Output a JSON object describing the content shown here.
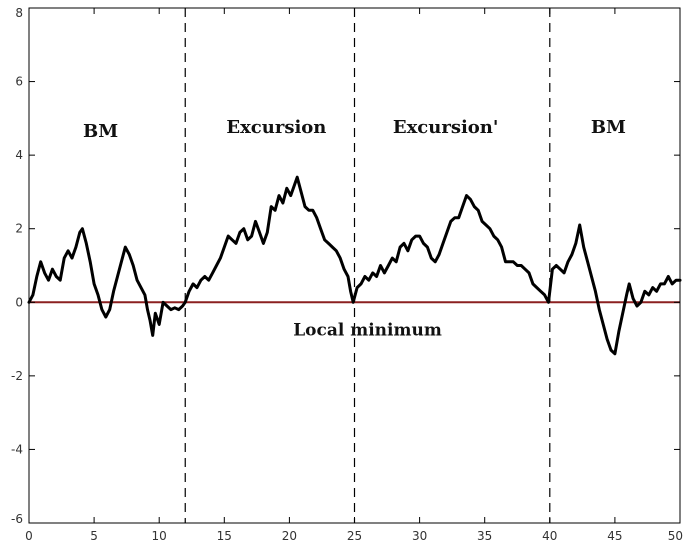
{
  "chart_data": {
    "type": "line",
    "title": "",
    "xlabel": "",
    "ylabel": "",
    "xlim": [
      0,
      50
    ],
    "ylim": [
      -6,
      8
    ],
    "xticks": [
      0,
      5,
      10,
      15,
      20,
      25,
      30,
      35,
      40,
      45,
      50
    ],
    "yticks": [
      -6,
      -4,
      -2,
      0,
      2,
      4,
      6,
      8
    ],
    "grid": false,
    "legend": "none",
    "series": [
      {
        "color": "#000000",
        "points": [
          [
            0.0,
            0.0
          ],
          [
            0.3,
            0.2
          ],
          [
            0.6,
            0.7
          ],
          [
            0.9,
            1.1
          ],
          [
            1.2,
            0.8
          ],
          [
            1.5,
            0.6
          ],
          [
            1.8,
            0.9
          ],
          [
            2.1,
            0.7
          ],
          [
            2.4,
            0.6
          ],
          [
            2.7,
            1.2
          ],
          [
            3.0,
            1.4
          ],
          [
            3.3,
            1.2
          ],
          [
            3.6,
            1.5
          ],
          [
            3.9,
            1.9
          ],
          [
            4.1,
            2.0
          ],
          [
            4.4,
            1.6
          ],
          [
            4.7,
            1.1
          ],
          [
            5.0,
            0.5
          ],
          [
            5.3,
            0.2
          ],
          [
            5.6,
            -0.2
          ],
          [
            5.9,
            -0.4
          ],
          [
            6.2,
            -0.2
          ],
          [
            6.5,
            0.3
          ],
          [
            6.8,
            0.7
          ],
          [
            7.1,
            1.1
          ],
          [
            7.4,
            1.5
          ],
          [
            7.7,
            1.3
          ],
          [
            8.0,
            1.0
          ],
          [
            8.3,
            0.6
          ],
          [
            8.6,
            0.4
          ],
          [
            8.9,
            0.2
          ],
          [
            9.1,
            -0.2
          ],
          [
            9.3,
            -0.5
          ],
          [
            9.5,
            -0.9
          ],
          [
            9.7,
            -0.3
          ],
          [
            10.0,
            -0.6
          ],
          [
            10.3,
            0.0
          ],
          [
            10.6,
            -0.1
          ],
          [
            10.9,
            -0.2
          ],
          [
            11.2,
            -0.15
          ],
          [
            11.5,
            -0.2
          ],
          [
            11.8,
            -0.1
          ],
          [
            12.0,
            0.0
          ],
          [
            12.3,
            0.3
          ],
          [
            12.6,
            0.5
          ],
          [
            12.9,
            0.4
          ],
          [
            13.2,
            0.6
          ],
          [
            13.5,
            0.7
          ],
          [
            13.8,
            0.6
          ],
          [
            14.1,
            0.8
          ],
          [
            14.4,
            1.0
          ],
          [
            14.7,
            1.2
          ],
          [
            15.0,
            1.5
          ],
          [
            15.3,
            1.8
          ],
          [
            15.6,
            1.7
          ],
          [
            15.9,
            1.6
          ],
          [
            16.2,
            1.9
          ],
          [
            16.5,
            2.0
          ],
          [
            16.8,
            1.7
          ],
          [
            17.1,
            1.8
          ],
          [
            17.4,
            2.2
          ],
          [
            17.7,
            1.9
          ],
          [
            18.0,
            1.6
          ],
          [
            18.3,
            1.9
          ],
          [
            18.6,
            2.6
          ],
          [
            18.9,
            2.5
          ],
          [
            19.2,
            2.9
          ],
          [
            19.5,
            2.7
          ],
          [
            19.8,
            3.1
          ],
          [
            20.1,
            2.9
          ],
          [
            20.4,
            3.2
          ],
          [
            20.6,
            3.4
          ],
          [
            20.9,
            3.0
          ],
          [
            21.2,
            2.6
          ],
          [
            21.5,
            2.5
          ],
          [
            21.8,
            2.5
          ],
          [
            22.1,
            2.3
          ],
          [
            22.4,
            2.0
          ],
          [
            22.7,
            1.7
          ],
          [
            23.0,
            1.6
          ],
          [
            23.3,
            1.5
          ],
          [
            23.6,
            1.4
          ],
          [
            23.9,
            1.2
          ],
          [
            24.2,
            0.9
          ],
          [
            24.5,
            0.7
          ],
          [
            24.7,
            0.3
          ],
          [
            24.9,
            0.0
          ],
          [
            25.2,
            0.4
          ],
          [
            25.5,
            0.5
          ],
          [
            25.8,
            0.7
          ],
          [
            26.1,
            0.6
          ],
          [
            26.4,
            0.8
          ],
          [
            26.7,
            0.7
          ],
          [
            27.0,
            1.0
          ],
          [
            27.3,
            0.8
          ],
          [
            27.6,
            1.0
          ],
          [
            27.9,
            1.2
          ],
          [
            28.2,
            1.1
          ],
          [
            28.5,
            1.5
          ],
          [
            28.8,
            1.6
          ],
          [
            29.1,
            1.4
          ],
          [
            29.4,
            1.7
          ],
          [
            29.7,
            1.8
          ],
          [
            30.0,
            1.8
          ],
          [
            30.3,
            1.6
          ],
          [
            30.6,
            1.5
          ],
          [
            30.9,
            1.2
          ],
          [
            31.2,
            1.1
          ],
          [
            31.5,
            1.3
          ],
          [
            31.8,
            1.6
          ],
          [
            32.1,
            1.9
          ],
          [
            32.4,
            2.2
          ],
          [
            32.7,
            2.3
          ],
          [
            33.0,
            2.3
          ],
          [
            33.3,
            2.6
          ],
          [
            33.6,
            2.9
          ],
          [
            33.9,
            2.8
          ],
          [
            34.2,
            2.6
          ],
          [
            34.5,
            2.5
          ],
          [
            34.8,
            2.2
          ],
          [
            35.1,
            2.1
          ],
          [
            35.4,
            2.0
          ],
          [
            35.7,
            1.8
          ],
          [
            36.0,
            1.7
          ],
          [
            36.3,
            1.5
          ],
          [
            36.6,
            1.1
          ],
          [
            36.9,
            1.1
          ],
          [
            37.2,
            1.1
          ],
          [
            37.5,
            1.0
          ],
          [
            37.8,
            1.0
          ],
          [
            38.1,
            0.9
          ],
          [
            38.4,
            0.8
          ],
          [
            38.7,
            0.5
          ],
          [
            39.0,
            0.4
          ],
          [
            39.3,
            0.3
          ],
          [
            39.6,
            0.2
          ],
          [
            39.9,
            0.0
          ],
          [
            40.2,
            0.9
          ],
          [
            40.5,
            1.0
          ],
          [
            40.8,
            0.9
          ],
          [
            41.1,
            0.8
          ],
          [
            41.4,
            1.1
          ],
          [
            41.7,
            1.3
          ],
          [
            42.0,
            1.6
          ],
          [
            42.3,
            2.1
          ],
          [
            42.6,
            1.5
          ],
          [
            42.9,
            1.1
          ],
          [
            43.2,
            0.7
          ],
          [
            43.5,
            0.3
          ],
          [
            43.8,
            -0.2
          ],
          [
            44.1,
            -0.6
          ],
          [
            44.4,
            -1.0
          ],
          [
            44.7,
            -1.3
          ],
          [
            45.0,
            -1.4
          ],
          [
            45.3,
            -0.8
          ],
          [
            45.6,
            -0.3
          ],
          [
            45.9,
            0.2
          ],
          [
            46.1,
            0.5
          ],
          [
            46.4,
            0.1
          ],
          [
            46.7,
            -0.1
          ],
          [
            47.0,
            0.0
          ],
          [
            47.3,
            0.3
          ],
          [
            47.6,
            0.2
          ],
          [
            47.9,
            0.4
          ],
          [
            48.2,
            0.3
          ],
          [
            48.5,
            0.5
          ],
          [
            48.8,
            0.5
          ],
          [
            49.1,
            0.7
          ],
          [
            49.4,
            0.5
          ],
          [
            49.7,
            0.6
          ],
          [
            50.0,
            0.6
          ]
        ]
      }
    ],
    "reference_lines": [
      {
        "orientation": "horizontal",
        "value": 0,
        "color": "#8b2020",
        "style": "solid"
      },
      {
        "orientation": "vertical",
        "value": 12,
        "color": "#000000",
        "style": "dashed"
      },
      {
        "orientation": "vertical",
        "value": 25,
        "color": "#000000",
        "style": "dashed"
      },
      {
        "orientation": "vertical",
        "value": 40,
        "color": "#000000",
        "style": "dashed"
      }
    ],
    "annotations": [
      {
        "text": "BM",
        "x": 5.5,
        "y": 4.5
      },
      {
        "text": "Excursion",
        "x": 19,
        "y": 4.6
      },
      {
        "text": "Excursion'",
        "x": 32,
        "y": 4.6
      },
      {
        "text": "BM",
        "x": 44.5,
        "y": 4.6
      },
      {
        "text": "Local minimum",
        "x": 26,
        "y": -0.9
      }
    ]
  }
}
